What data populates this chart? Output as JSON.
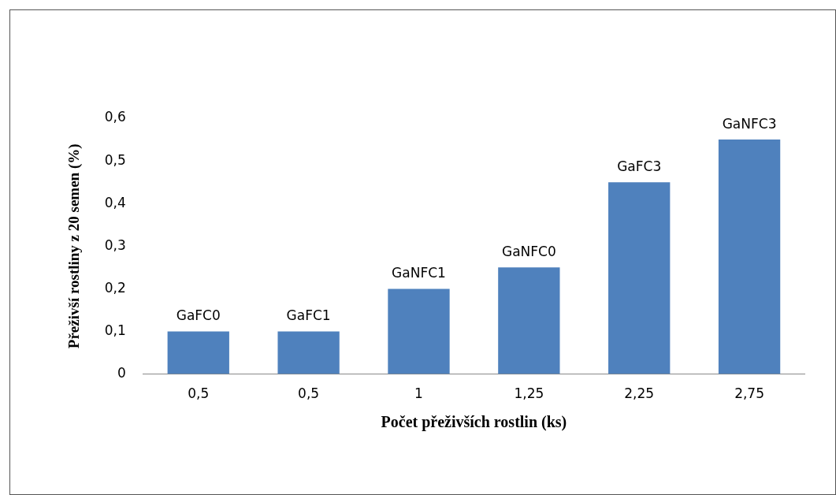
{
  "chart_data": {
    "type": "bar",
    "xlabel": "Počet přeživších rostlin (ks)",
    "ylabel": "Přeživší rostliny z 20 semen (%)",
    "categories": [
      "0,5",
      "0,5",
      "1",
      "1,25",
      "2,25",
      "2,75"
    ],
    "values": [
      0.1,
      0.1,
      0.2,
      0.25,
      0.45,
      0.55
    ],
    "value_labels": [
      "GaFC0",
      "GaFC1",
      "GaNFC1",
      "GaNFC0",
      "GaFC3",
      "GaNFC3"
    ],
    "color": "#4f81bd",
    "ylim": [
      0,
      0.6
    ],
    "yticks": [
      {
        "value": 0,
        "label": "0"
      },
      {
        "value": 0.1,
        "label": "0,1"
      },
      {
        "value": 0.2,
        "label": "0,2"
      },
      {
        "value": 0.3,
        "label": "0,3"
      },
      {
        "value": 0.4,
        "label": "0,4"
      },
      {
        "value": 0.5,
        "label": "0,5"
      },
      {
        "value": 0.6,
        "label": "0,6"
      }
    ],
    "grid": false,
    "legend": false
  }
}
